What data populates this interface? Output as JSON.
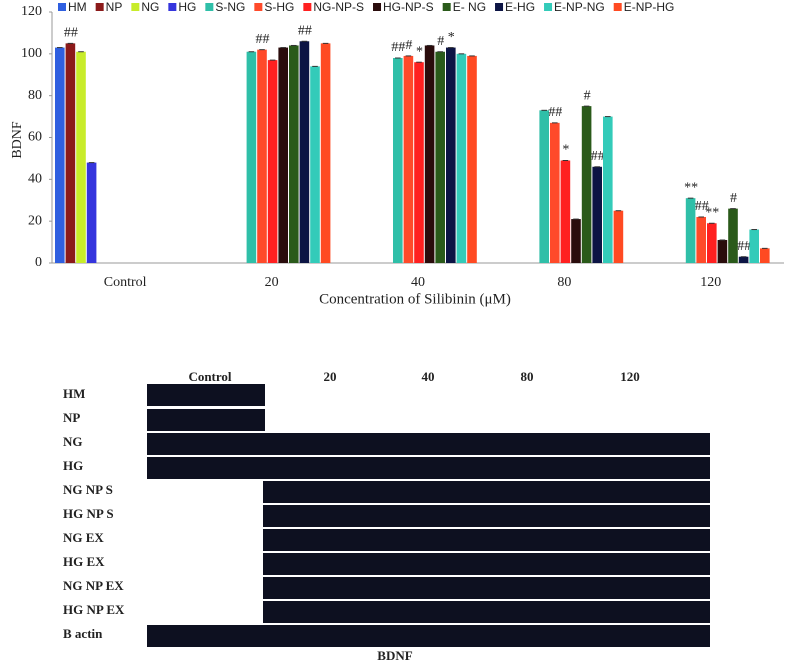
{
  "chart_data": {
    "type": "bar",
    "y_label": "BDNF",
    "x_label": "Concentration of  Silibinin (μM)",
    "categories": [
      "Control",
      "20",
      "40",
      "80",
      "120"
    ],
    "ylim": [
      0,
      120
    ],
    "yticks": [
      0,
      20,
      40,
      60,
      80,
      100,
      120
    ],
    "series": [
      {
        "name": "HM",
        "color": "#2f5fe0",
        "values": [
          103,
          null,
          null,
          null,
          null
        ],
        "significance": [
          null,
          null,
          null,
          null,
          null
        ]
      },
      {
        "name": "NP",
        "color": "#8b1a1a",
        "values": [
          105,
          null,
          null,
          null,
          null
        ],
        "significance": [
          "##",
          null,
          null,
          null,
          null
        ]
      },
      {
        "name": "NG",
        "color": "#c8ec2a",
        "values": [
          101,
          null,
          null,
          null,
          null
        ],
        "significance": [
          null,
          null,
          null,
          null,
          null
        ]
      },
      {
        "name": "HG",
        "color": "#3535dd",
        "values": [
          48,
          null,
          null,
          null,
          null
        ],
        "significance": [
          null,
          null,
          null,
          null,
          null
        ]
      },
      {
        "name": "S-NG",
        "color": "#2fbfa8",
        "values": [
          null,
          101,
          98,
          73,
          31
        ],
        "significance": [
          null,
          null,
          "##",
          null,
          "**"
        ]
      },
      {
        "name": "S-HG",
        "color": "#ff4a2a",
        "values": [
          null,
          102,
          99,
          67,
          22
        ],
        "significance": [
          null,
          "##",
          "#",
          "##",
          "##"
        ]
      },
      {
        "name": "NG-NP-S",
        "color": "#ff2020",
        "values": [
          null,
          97,
          96,
          49,
          19
        ],
        "significance": [
          null,
          null,
          "*",
          "*",
          "**"
        ]
      },
      {
        "name": "HG-NP-S",
        "color": "#2a0c0c",
        "values": [
          null,
          103,
          104,
          21,
          11
        ],
        "significance": [
          null,
          null,
          null,
          null,
          null
        ]
      },
      {
        "name": "E-  NG",
        "color": "#2a5a1a",
        "values": [
          null,
          104,
          101,
          75,
          26
        ],
        "significance": [
          null,
          null,
          "#",
          "#",
          "#"
        ]
      },
      {
        "name": "E-HG",
        "color": "#0c1444",
        "values": [
          null,
          106,
          103,
          46,
          3
        ],
        "significance": [
          null,
          "##",
          "*",
          "##",
          "##"
        ]
      },
      {
        "name": "E-NP-NG",
        "color": "#33cbb9",
        "values": [
          null,
          94,
          100,
          70,
          16
        ],
        "significance": [
          null,
          null,
          null,
          null,
          null
        ]
      },
      {
        "name": "E-NP-HG",
        "color": "#ff4a22",
        "values": [
          null,
          105,
          99,
          25,
          7
        ],
        "significance": [
          null,
          null,
          null,
          null,
          null
        ]
      }
    ]
  },
  "blot": {
    "columns": [
      "Control",
      "20",
      "40",
      "80",
      "120"
    ],
    "rows": [
      "HM",
      "NP",
      "NG",
      "HG",
      "NG NP S",
      "HG NP S",
      "NG EX",
      "HG EX",
      "NG NP EX",
      "HG NP EX",
      "B actin"
    ],
    "caption": "BDNF"
  }
}
